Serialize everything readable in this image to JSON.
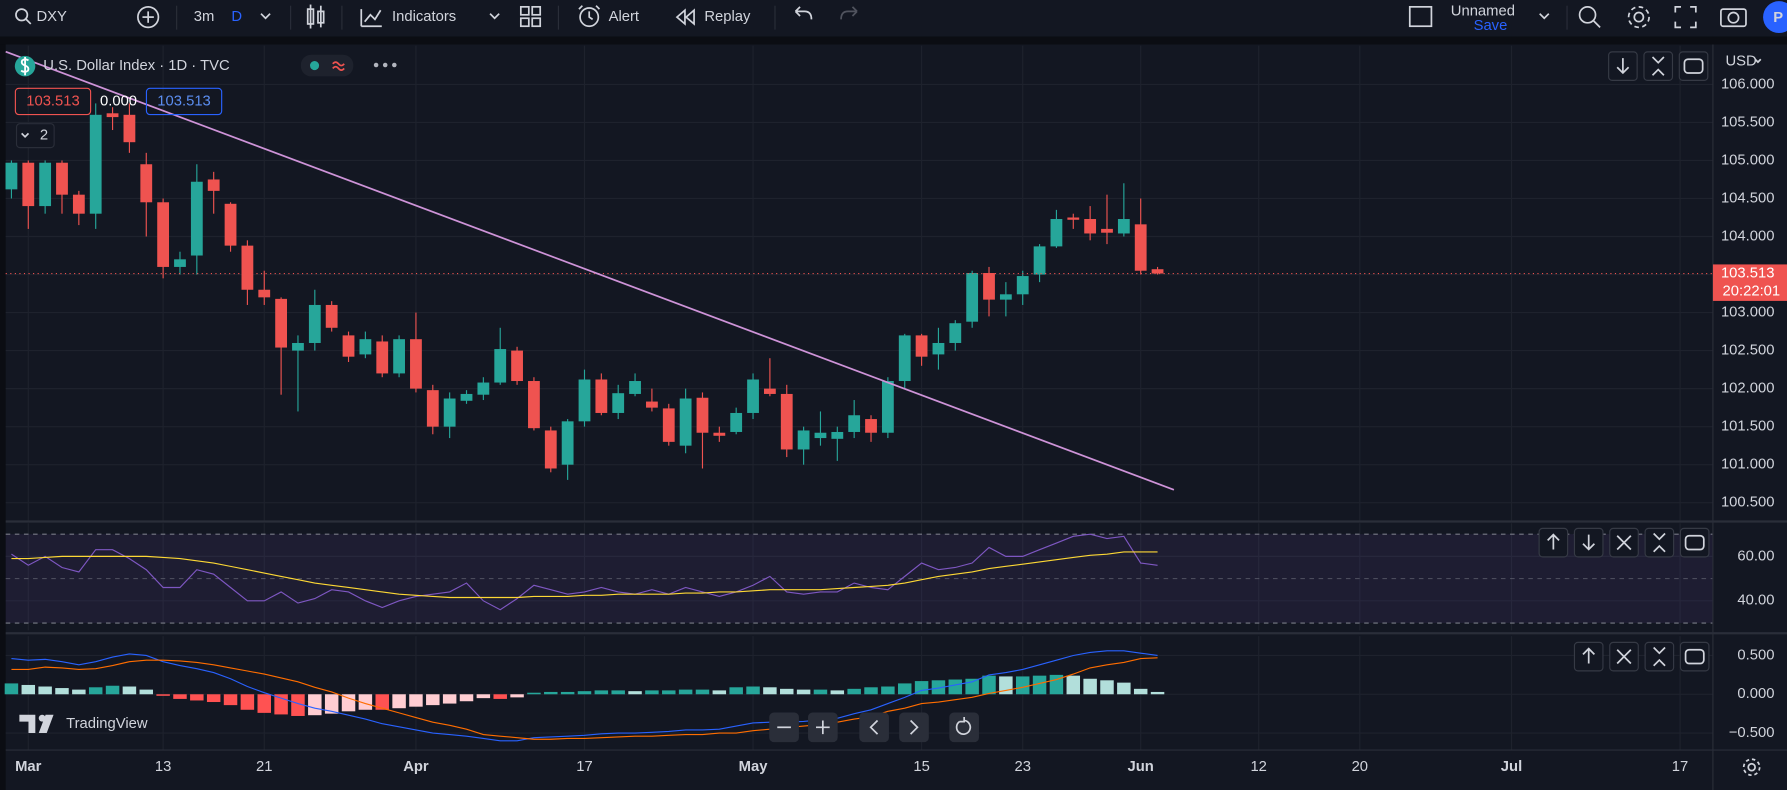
{
  "toolbar": {
    "symbol": "DXY",
    "range": "3m",
    "timeframe": "D",
    "indicators": "Indicators",
    "alert": "Alert",
    "replay": "Replay",
    "layout": "Unnamed",
    "save": "Save",
    "avatar": "P"
  },
  "watermark": "TradingView",
  "chart_data": [
    {
      "type": "candlestick",
      "title": "U.S. Dollar Index · 1D · TVC",
      "currency": "USD",
      "legend_values": [
        "103.513",
        "0.000",
        "103.513"
      ],
      "legend_toggle": 2,
      "up_color": "#26a69a",
      "down_color": "#ef5350",
      "open": [
        104.62,
        104.97,
        104.4,
        104.97,
        104.55,
        104.3,
        105.62,
        105.6,
        104.95,
        104.45,
        103.6,
        103.75,
        104.75,
        104.43,
        103.88,
        103.3,
        103.18,
        102.5,
        102.6,
        103.1,
        102.7,
        102.45,
        102.62,
        102.2,
        102.65,
        101.98,
        101.5,
        101.84,
        101.92,
        102.08,
        102.5,
        102.1,
        101.45,
        101.0,
        101.57,
        102.12,
        101.68,
        101.93,
        101.83,
        101.74,
        101.25,
        101.88,
        101.42,
        101.43,
        101.68,
        102.0,
        101.93,
        101.2,
        101.35,
        101.34,
        101.43,
        101.6,
        101.42,
        102.1,
        102.7,
        102.45,
        102.6,
        102.88,
        103.52,
        103.17,
        103.24,
        103.5,
        103.87,
        104.25,
        104.23,
        104.1,
        104.04,
        104.16,
        103.57
      ],
      "high": [
        105.0,
        105.0,
        105.0,
        105.0,
        104.6,
        105.75,
        105.7,
        105.75,
        105.1,
        104.5,
        103.8,
        104.95,
        104.85,
        104.45,
        103.95,
        103.55,
        103.2,
        102.7,
        103.3,
        103.15,
        102.75,
        102.75,
        102.7,
        102.7,
        103.0,
        102.05,
        101.95,
        101.98,
        102.15,
        102.8,
        102.55,
        102.15,
        101.5,
        101.6,
        102.25,
        102.2,
        102.05,
        102.2,
        102.0,
        101.8,
        102.0,
        101.95,
        101.5,
        101.75,
        102.2,
        102.4,
        102.05,
        101.5,
        101.7,
        101.5,
        101.85,
        101.65,
        102.15,
        102.72,
        102.72,
        102.8,
        102.9,
        103.55,
        103.6,
        103.4,
        103.55,
        103.9,
        104.35,
        104.3,
        104.4,
        104.55,
        104.7,
        104.5,
        103.6
      ],
      "low": [
        104.5,
        104.1,
        104.3,
        104.3,
        104.15,
        104.1,
        105.4,
        105.1,
        104.0,
        103.45,
        103.5,
        103.5,
        104.3,
        103.8,
        103.1,
        103.1,
        101.92,
        101.7,
        102.5,
        102.75,
        102.35,
        102.4,
        102.15,
        102.15,
        101.95,
        101.4,
        101.35,
        101.8,
        101.85,
        102.05,
        102.05,
        101.45,
        100.9,
        100.8,
        101.5,
        101.65,
        101.6,
        101.9,
        101.7,
        101.25,
        101.15,
        100.95,
        101.3,
        101.4,
        101.6,
        101.9,
        101.1,
        101.0,
        101.25,
        101.05,
        101.35,
        101.3,
        101.35,
        102.0,
        102.3,
        102.25,
        102.5,
        102.8,
        102.95,
        102.95,
        103.1,
        103.4,
        103.85,
        104.1,
        103.95,
        103.9,
        104.0,
        103.5,
        103.5
      ],
      "close": [
        104.97,
        104.4,
        104.97,
        104.55,
        104.3,
        105.6,
        105.57,
        105.24,
        104.45,
        103.6,
        103.7,
        104.72,
        104.6,
        103.88,
        103.3,
        103.2,
        102.54,
        102.6,
        103.1,
        102.8,
        102.42,
        102.65,
        102.2,
        102.65,
        102.0,
        101.5,
        101.87,
        101.93,
        102.08,
        102.52,
        102.1,
        101.48,
        100.95,
        101.57,
        102.12,
        101.68,
        101.94,
        102.1,
        101.75,
        101.3,
        101.87,
        101.42,
        101.38,
        101.68,
        102.12,
        101.93,
        101.2,
        101.45,
        101.42,
        101.43,
        101.65,
        101.42,
        102.1,
        102.7,
        102.42,
        102.6,
        102.86,
        103.52,
        103.17,
        103.24,
        103.48,
        103.87,
        104.23,
        104.22,
        104.04,
        104.05,
        104.23,
        103.55,
        103.513
      ],
      "last_price": {
        "value": 103.513,
        "label": "103.513"
      },
      "countdown": "20:22:01",
      "trendline": {
        "x": [
          -0.34,
          68.97
        ],
        "values": [
          106.43,
          100.67
        ],
        "color": "#ce93d8"
      },
      "xlim": [
        -0.34,
        100.95
      ],
      "xticks": [
        {
          "value": 1,
          "label": "Mar"
        },
        {
          "value": 9,
          "label": "13"
        },
        {
          "value": 15,
          "label": "21"
        },
        {
          "value": 24,
          "label": "Apr"
        },
        {
          "value": 34,
          "label": "17"
        },
        {
          "value": 44,
          "label": "May"
        },
        {
          "value": 54,
          "label": "15"
        },
        {
          "value": 60,
          "label": "23"
        },
        {
          "value": 67,
          "label": "Jun"
        },
        {
          "value": 74,
          "label": "12"
        },
        {
          "value": 80,
          "label": "20"
        },
        {
          "value": 89,
          "label": "Jul"
        },
        {
          "value": 99,
          "label": "17"
        }
      ],
      "ylim": [
        100.26,
        106.51
      ],
      "yticks": [
        {
          "value": 106,
          "label": "106.000"
        },
        {
          "value": 105.5,
          "label": "105.500"
        },
        {
          "value": 105,
          "label": "105.000"
        },
        {
          "value": 104.5,
          "label": "104.500"
        },
        {
          "value": 104,
          "label": "104.000"
        },
        {
          "value": 103.5,
          "label": "103.500"
        },
        {
          "value": 103,
          "label": "103.000"
        },
        {
          "value": 102.5,
          "label": "102.500"
        },
        {
          "value": 102,
          "label": "102.000"
        },
        {
          "value": 101.5,
          "label": "101.500"
        },
        {
          "value": 101,
          "label": "101.000"
        },
        {
          "value": 100.5,
          "label": "100.500"
        }
      ],
      "grid": true
    },
    {
      "type": "line",
      "series": [
        {
          "color": "#7e57c2",
          "values": [
            61,
            56,
            60,
            55,
            53,
            63,
            63,
            59,
            54,
            46,
            46,
            54,
            52,
            46,
            40,
            40,
            44,
            39,
            41,
            45,
            44,
            40,
            37,
            40,
            42,
            43,
            44,
            48,
            40,
            36,
            41,
            47,
            45,
            43,
            44,
            46,
            44,
            43,
            45,
            43,
            46,
            44,
            42,
            44,
            47,
            51,
            44,
            43,
            44,
            44,
            48,
            46,
            45,
            51,
            57,
            54,
            55,
            57,
            64,
            60,
            60,
            63,
            66,
            69,
            70,
            68,
            69,
            57,
            56
          ]
        },
        {
          "color": "#fdd835",
          "values": [
            59,
            59,
            59.5,
            60,
            60,
            60,
            60,
            60,
            60,
            59.5,
            59,
            58,
            57,
            55.5,
            54,
            52.5,
            51,
            49.5,
            48,
            47,
            46,
            45,
            44,
            43,
            42.5,
            42,
            41.5,
            41.5,
            41.5,
            41.5,
            41.5,
            42,
            42,
            42,
            42.5,
            42.5,
            43,
            43,
            43,
            43,
            43.5,
            43.5,
            44,
            44,
            44.5,
            45,
            45,
            45,
            45,
            45.5,
            46,
            46.5,
            47,
            48,
            49.5,
            51,
            52,
            53,
            54.5,
            55.5,
            56.5,
            57.5,
            58.5,
            59.5,
            60.5,
            61,
            62,
            62,
            62
          ]
        }
      ],
      "bands": [
        70,
        50,
        30
      ],
      "band_color": "#7e57c2",
      "ylim": [
        26.7,
        74.9
      ],
      "yticks": [
        {
          "value": 60,
          "label": "60.00"
        },
        {
          "value": 40,
          "label": "40.00"
        }
      ],
      "grid": true
    },
    {
      "type": "macd",
      "histogram": {
        "values": [
          0.14,
          0.12,
          0.1,
          0.08,
          0.06,
          0.09,
          0.11,
          0.1,
          0.06,
          -0.02,
          -0.06,
          -0.08,
          -0.1,
          -0.14,
          -0.2,
          -0.24,
          -0.26,
          -0.28,
          -0.27,
          -0.25,
          -0.22,
          -0.2,
          -0.2,
          -0.18,
          -0.16,
          -0.14,
          -0.12,
          -0.09,
          -0.05,
          -0.06,
          -0.04,
          0.02,
          0.03,
          0.03,
          0.04,
          0.05,
          0.05,
          0.04,
          0.05,
          0.05,
          0.06,
          0.06,
          0.05,
          0.09,
          0.1,
          0.09,
          0.07,
          0.06,
          0.06,
          0.05,
          0.07,
          0.09,
          0.1,
          0.14,
          0.17,
          0.18,
          0.19,
          0.2,
          0.24,
          0.23,
          0.23,
          0.24,
          0.25,
          0.24,
          0.2,
          0.18,
          0.15,
          0.07,
          0.03
        ],
        "colors": [
          "#26a69a",
          "#b2dfdb",
          "#ff5252",
          "#ffcdd2"
        ]
      },
      "series": [
        {
          "color": "#2962ff",
          "values": [
            0.46,
            0.44,
            0.45,
            0.42,
            0.38,
            0.42,
            0.48,
            0.52,
            0.5,
            0.42,
            0.37,
            0.33,
            0.28,
            0.2,
            0.1,
            0.02,
            -0.05,
            -0.12,
            -0.18,
            -0.22,
            -0.27,
            -0.32,
            -0.38,
            -0.42,
            -0.46,
            -0.5,
            -0.52,
            -0.54,
            -0.57,
            -0.6,
            -0.6,
            -0.56,
            -0.55,
            -0.54,
            -0.53,
            -0.51,
            -0.5,
            -0.5,
            -0.49,
            -0.48,
            -0.46,
            -0.46,
            -0.45,
            -0.41,
            -0.37,
            -0.36,
            -0.36,
            -0.35,
            -0.33,
            -0.31,
            -0.25,
            -0.2,
            -0.12,
            -0.04,
            0.05,
            0.08,
            0.12,
            0.16,
            0.25,
            0.28,
            0.32,
            0.38,
            0.44,
            0.5,
            0.54,
            0.56,
            0.56,
            0.53,
            0.5
          ]
        },
        {
          "color": "#ff6d00",
          "values": [
            0.32,
            0.32,
            0.35,
            0.34,
            0.32,
            0.33,
            0.37,
            0.42,
            0.44,
            0.44,
            0.43,
            0.41,
            0.38,
            0.34,
            0.3,
            0.26,
            0.21,
            0.16,
            0.09,
            0.03,
            -0.05,
            -0.12,
            -0.18,
            -0.24,
            -0.3,
            -0.36,
            -0.4,
            -0.45,
            -0.52,
            -0.54,
            -0.56,
            -0.58,
            -0.58,
            -0.57,
            -0.57,
            -0.56,
            -0.55,
            -0.54,
            -0.54,
            -0.53,
            -0.52,
            -0.52,
            -0.5,
            -0.5,
            -0.47,
            -0.45,
            -0.43,
            -0.41,
            -0.39,
            -0.36,
            -0.32,
            -0.29,
            -0.22,
            -0.18,
            -0.12,
            -0.1,
            -0.07,
            -0.04,
            0.01,
            0.05,
            0.09,
            0.14,
            0.19,
            0.26,
            0.34,
            0.38,
            0.41,
            0.46,
            0.47
          ]
        }
      ],
      "ylim": [
        -0.72,
        0.75
      ],
      "yticks": [
        {
          "value": 0.5,
          "label": "0.500"
        },
        {
          "value": 0,
          "label": "0.000"
        },
        {
          "value": -0.5,
          "label": "−0.500"
        }
      ],
      "grid": true
    }
  ]
}
